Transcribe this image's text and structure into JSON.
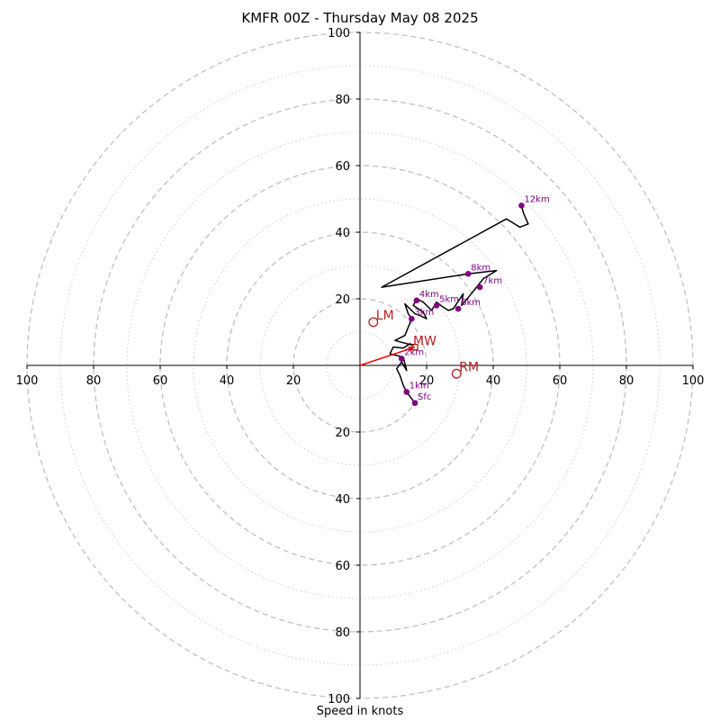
{
  "chart_data": {
    "type": "scatter",
    "title": "KMFR 00Z - Thursday May 08 2025",
    "xlabel": "Speed in knots",
    "ylabel": "",
    "xlim": [
      -100,
      100
    ],
    "ylim": [
      -100,
      100
    ],
    "rings_major": [
      20,
      40,
      60,
      80,
      100
    ],
    "rings_minor": [
      10,
      30,
      50,
      70,
      90
    ],
    "x_tick_labels": [
      "100",
      "80",
      "60",
      "40",
      "20",
      "20",
      "40",
      "60",
      "80",
      "100"
    ],
    "y_tick_labels": [
      "100",
      "80",
      "60",
      "40",
      "20",
      "20",
      "40",
      "60",
      "80",
      "100"
    ],
    "colors": {
      "hodograph": "#000000",
      "height_points": "#800080",
      "motion": "#b22222",
      "mean_wind_vector": "#ff0000",
      "rings": "#bbbbbb"
    },
    "hodograph": [
      [
        16.5,
        -11.3
      ],
      [
        14,
        -8
      ],
      [
        13,
        -6
      ],
      [
        12,
        -3
      ],
      [
        11,
        -1
      ],
      [
        12.5,
        1
      ],
      [
        14,
        -1.5
      ],
      [
        13,
        2.5
      ],
      [
        9,
        3.5
      ],
      [
        10,
        5.5
      ],
      [
        13,
        5.2
      ],
      [
        15,
        6.5
      ],
      [
        16,
        6
      ],
      [
        10.5,
        7.5
      ],
      [
        13.5,
        9
      ],
      [
        15.5,
        14
      ],
      [
        14.5,
        15.5
      ],
      [
        13.5,
        18.5
      ],
      [
        16.5,
        15.5
      ],
      [
        18,
        15
      ],
      [
        20,
        14
      ],
      [
        19,
        16
      ],
      [
        16,
        18
      ],
      [
        17,
        20
      ],
      [
        19,
        19
      ],
      [
        21.5,
        16.5
      ],
      [
        23,
        19
      ],
      [
        25,
        17.5
      ],
      [
        26.5,
        16.5
      ],
      [
        28,
        17
      ],
      [
        31,
        21.5
      ],
      [
        30.5,
        18
      ],
      [
        33,
        21
      ],
      [
        35,
        23.5
      ],
      [
        37,
        26
      ],
      [
        41,
        28.5
      ],
      [
        32.5,
        27.5
      ],
      [
        6.5,
        23.5
      ],
      [
        44,
        44
      ],
      [
        48,
        41.5
      ],
      [
        50.5,
        42.5
      ],
      [
        49,
        46
      ],
      [
        48.5,
        48
      ]
    ],
    "height_points": [
      {
        "label": "Sfc",
        "x": 16.5,
        "y": -11.3
      },
      {
        "label": "1km",
        "x": 14,
        "y": -8
      },
      {
        "label": "2km",
        "x": 12.5,
        "y": 2
      },
      {
        "label": "3km",
        "x": 15.5,
        "y": 14
      },
      {
        "label": "4km",
        "x": 17,
        "y": 19.5
      },
      {
        "label": "5km",
        "x": 23,
        "y": 18
      },
      {
        "label": "6km",
        "x": 29.5,
        "y": 17
      },
      {
        "label": "7km",
        "x": 36,
        "y": 23.5
      },
      {
        "label": "8km",
        "x": 32.5,
        "y": 27.5
      },
      {
        "label": "12km",
        "x": 48.5,
        "y": 48
      }
    ],
    "storm_motion": [
      {
        "label": "LM",
        "x": 4,
        "y": 13
      },
      {
        "label": "MW",
        "x": 16.5,
        "y": 5.5
      },
      {
        "label": "RM",
        "x": 29,
        "y": -2.5
      }
    ],
    "mean_wind_vector": {
      "x": 16.5,
      "y": 5.5
    }
  }
}
